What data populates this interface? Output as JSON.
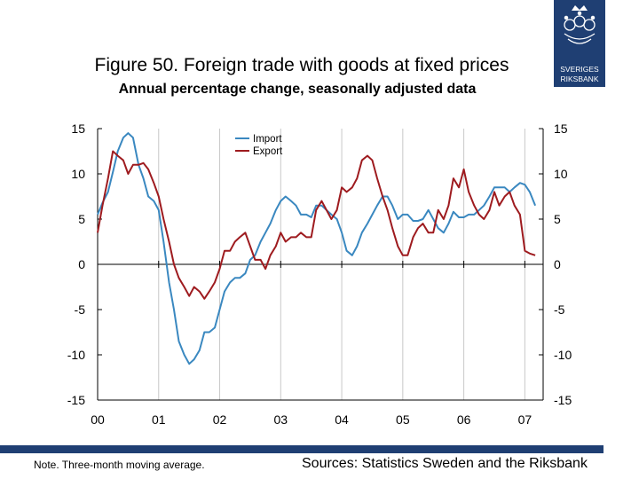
{
  "header": {
    "title": "Figure 50. Foreign trade with goods at fixed prices",
    "subtitle": "Annual percentage change, seasonally adjusted data"
  },
  "logo": {
    "line1": "SVERIGES",
    "line2": "RIKSBANK",
    "icon": "crowned-riksbank-emblem-icon",
    "color": "#1f3f73"
  },
  "footer": {
    "note": "Note. Three-month moving average.",
    "sources": "Sources: Statistics Sweden and the Riksbank",
    "bar_color": "#1f3f73"
  },
  "chart_data": {
    "type": "line",
    "title": "Figure 50. Foreign trade with goods at fixed prices",
    "subtitle": "Annual percentage change, seasonally adjusted data",
    "x_tick_labels": [
      "00",
      "01",
      "02",
      "03",
      "04",
      "05",
      "06",
      "07"
    ],
    "x_tick_values": [
      2000,
      2001,
      2002,
      2003,
      2004,
      2005,
      2006,
      2007
    ],
    "xlim": [
      2000,
      2007.3
    ],
    "ylim": [
      -15,
      15
    ],
    "y_ticks": [
      15,
      10,
      5,
      0,
      -5,
      -10,
      -15
    ],
    "y_tick_labels": [
      "15",
      "10",
      "5",
      "0",
      "-5",
      "-10",
      "-15"
    ],
    "grid": "vertical lines at year ticks",
    "legend_position": "top-center",
    "series": [
      {
        "name": "Import",
        "color": "#3a88c0",
        "x": [
          2000.0,
          2000.08,
          2000.17,
          2000.25,
          2000.33,
          2000.42,
          2000.5,
          2000.58,
          2000.67,
          2000.75,
          2000.83,
          2000.92,
          2001.0,
          2001.08,
          2001.17,
          2001.25,
          2001.33,
          2001.42,
          2001.5,
          2001.58,
          2001.67,
          2001.75,
          2001.83,
          2001.92,
          2002.0,
          2002.08,
          2002.17,
          2002.25,
          2002.33,
          2002.42,
          2002.5,
          2002.58,
          2002.67,
          2002.75,
          2002.83,
          2002.92,
          2003.0,
          2003.08,
          2003.17,
          2003.25,
          2003.33,
          2003.42,
          2003.5,
          2003.58,
          2003.67,
          2003.75,
          2003.83,
          2003.92,
          2004.0,
          2004.08,
          2004.17,
          2004.25,
          2004.33,
          2004.42,
          2004.5,
          2004.58,
          2004.67,
          2004.75,
          2004.83,
          2004.92,
          2005.0,
          2005.08,
          2005.17,
          2005.25,
          2005.33,
          2005.42,
          2005.5,
          2005.58,
          2005.67,
          2005.75,
          2005.83,
          2005.92,
          2006.0,
          2006.08,
          2006.17,
          2006.25,
          2006.33,
          2006.42,
          2006.5,
          2006.58,
          2006.67,
          2006.75,
          2006.83,
          2006.92,
          2007.0,
          2007.08,
          2007.17
        ],
        "values": [
          5.5,
          6.8,
          8.0,
          10.2,
          12.5,
          14.0,
          14.5,
          14.0,
          11.0,
          9.5,
          7.5,
          7.0,
          6.0,
          2.5,
          -2.0,
          -5.0,
          -8.5,
          -10.0,
          -11.0,
          -10.5,
          -9.5,
          -7.5,
          -7.5,
          -7.0,
          -5.0,
          -3.0,
          -2.0,
          -1.5,
          -1.5,
          -1.0,
          0.5,
          1.0,
          2.5,
          3.5,
          4.5,
          6.0,
          7.0,
          7.5,
          7.0,
          6.5,
          5.5,
          5.5,
          5.2,
          6.5,
          6.5,
          6.0,
          5.5,
          5.0,
          3.5,
          1.5,
          1.0,
          2.0,
          3.5,
          4.5,
          5.5,
          6.5,
          7.5,
          7.5,
          6.5,
          5.0,
          5.5,
          5.5,
          4.8,
          4.8,
          5.0,
          6.0,
          5.0,
          4.0,
          3.5,
          4.5,
          5.8,
          5.2,
          5.2,
          5.5,
          5.5,
          6.0,
          6.5,
          7.5,
          8.5,
          8.5,
          8.5,
          8.0,
          8.5,
          9.0,
          8.8,
          8.0,
          6.5
        ]
      },
      {
        "name": "Export",
        "color": "#9e1b1f",
        "x": [
          2000.0,
          2000.08,
          2000.17,
          2000.25,
          2000.33,
          2000.42,
          2000.5,
          2000.58,
          2000.67,
          2000.75,
          2000.83,
          2000.92,
          2001.0,
          2001.08,
          2001.17,
          2001.25,
          2001.33,
          2001.42,
          2001.5,
          2001.58,
          2001.67,
          2001.75,
          2001.83,
          2001.92,
          2002.0,
          2002.08,
          2002.17,
          2002.25,
          2002.33,
          2002.42,
          2002.5,
          2002.58,
          2002.67,
          2002.75,
          2002.83,
          2002.92,
          2003.0,
          2003.08,
          2003.17,
          2003.25,
          2003.33,
          2003.42,
          2003.5,
          2003.58,
          2003.67,
          2003.75,
          2003.83,
          2003.92,
          2004.0,
          2004.08,
          2004.17,
          2004.25,
          2004.33,
          2004.42,
          2004.5,
          2004.58,
          2004.67,
          2004.75,
          2004.83,
          2004.92,
          2005.0,
          2005.08,
          2005.17,
          2005.25,
          2005.33,
          2005.42,
          2005.5,
          2005.58,
          2005.67,
          2005.75,
          2005.83,
          2005.92,
          2006.0,
          2006.08,
          2006.17,
          2006.25,
          2006.33,
          2006.42,
          2006.5,
          2006.58,
          2006.67,
          2006.75,
          2006.83,
          2006.92,
          2007.0,
          2007.08,
          2007.17
        ],
        "values": [
          3.5,
          6.5,
          9.5,
          12.5,
          12.0,
          11.5,
          10.0,
          11.0,
          11.0,
          11.2,
          10.5,
          9.0,
          7.5,
          5.0,
          2.5,
          0.0,
          -1.5,
          -2.5,
          -3.5,
          -2.5,
          -3.0,
          -3.8,
          -3.0,
          -2.0,
          -0.5,
          1.5,
          1.5,
          2.5,
          3.0,
          3.5,
          2.0,
          0.5,
          0.5,
          -0.5,
          1.0,
          2.0,
          3.5,
          2.5,
          3.0,
          3.0,
          3.5,
          3.0,
          3.0,
          6.0,
          7.0,
          6.0,
          5.0,
          6.0,
          8.5,
          8.0,
          8.5,
          9.5,
          11.5,
          12.0,
          11.5,
          9.5,
          7.5,
          6.0,
          4.0,
          2.0,
          1.0,
          1.0,
          3.0,
          4.0,
          4.5,
          3.5,
          3.5,
          6.0,
          5.0,
          6.5,
          9.5,
          8.5,
          10.5,
          8.0,
          6.5,
          5.5,
          5.0,
          6.0,
          8.0,
          6.5,
          7.5,
          8.0,
          6.5,
          5.5,
          1.5,
          1.2,
          1.0
        ]
      }
    ]
  }
}
